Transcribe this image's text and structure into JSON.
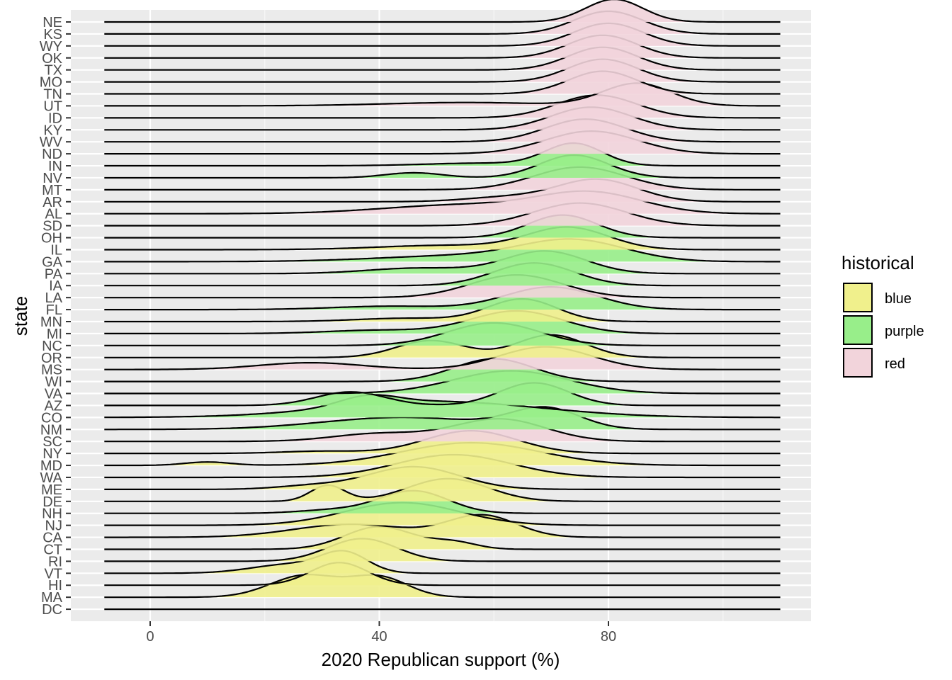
{
  "chart_data": {
    "type": "ridgeline",
    "xlabel": "2020 Republican support (%)",
    "ylabel": "state",
    "x_ticks": [
      0,
      40,
      80
    ],
    "x_tick_labels": [
      "0",
      "40",
      "80"
    ],
    "xlim": [
      -14,
      115
    ],
    "grid": true,
    "legend": {
      "title": "historical",
      "position": "right",
      "entries": [
        {
          "label": "blue",
          "color": "#F0F08C"
        },
        {
          "label": "purple",
          "color": "#98EE8A"
        },
        {
          "label": "red",
          "color": "#F2D4DB"
        }
      ]
    },
    "colors": {
      "blue": "#F0F08C",
      "purple": "#98EE8A",
      "red": "#F2D4DB"
    },
    "states": [
      {
        "state": "NE",
        "group": "red",
        "modes": [
          [
            81,
            5,
            1
          ]
        ]
      },
      {
        "state": "KS",
        "group": "red",
        "modes": [
          [
            80,
            6,
            1
          ]
        ]
      },
      {
        "state": "WY",
        "group": "red",
        "modes": [
          [
            80,
            6,
            1
          ]
        ]
      },
      {
        "state": "OK",
        "group": "red",
        "modes": [
          [
            79,
            6,
            1
          ]
        ]
      },
      {
        "state": "TX",
        "group": "red",
        "modes": [
          [
            79,
            6,
            1
          ]
        ]
      },
      {
        "state": "MO",
        "group": "red",
        "modes": [
          [
            79,
            6,
            1
          ]
        ]
      },
      {
        "state": "TN",
        "group": "red",
        "modes": [
          [
            79,
            6,
            1
          ]
        ]
      },
      {
        "state": "UT",
        "group": "red",
        "modes": [
          [
            85,
            6,
            1
          ],
          [
            55,
            14,
            0.15
          ]
        ]
      },
      {
        "state": "ID",
        "group": "red",
        "modes": [
          [
            78,
            7,
            1
          ]
        ]
      },
      {
        "state": "KY",
        "group": "red",
        "modes": [
          [
            77,
            7,
            1
          ]
        ]
      },
      {
        "state": "WV",
        "group": "red",
        "modes": [
          [
            76,
            7,
            1
          ]
        ]
      },
      {
        "state": "ND",
        "group": "red",
        "modes": [
          [
            77,
            8,
            1
          ]
        ]
      },
      {
        "state": "IN",
        "group": "purple",
        "modes": [
          [
            74,
            5,
            1
          ],
          [
            58,
            10,
            0.12
          ]
        ]
      },
      {
        "state": "NV",
        "group": "purple",
        "modes": [
          [
            74,
            6,
            1
          ],
          [
            46,
            5,
            0.22
          ]
        ]
      },
      {
        "state": "MT",
        "group": "red",
        "modes": [
          [
            75,
            8,
            1
          ]
        ]
      },
      {
        "state": "AR",
        "group": "red",
        "modes": [
          [
            78,
            7,
            1
          ],
          [
            62,
            7,
            0.2
          ]
        ]
      },
      {
        "state": "AL",
        "group": "red",
        "modes": [
          [
            77,
            9,
            1
          ],
          [
            55,
            14,
            0.45
          ]
        ]
      },
      {
        "state": "SD",
        "group": "red",
        "modes": [
          [
            75,
            8,
            1
          ]
        ]
      },
      {
        "state": "OH",
        "group": "purple",
        "modes": [
          [
            72,
            6,
            1
          ]
        ]
      },
      {
        "state": "IL",
        "group": "blue",
        "modes": [
          [
            73,
            7,
            1
          ],
          [
            52,
            12,
            0.2
          ]
        ]
      },
      {
        "state": "GA",
        "group": "purple",
        "modes": [
          [
            74,
            9,
            1
          ],
          [
            55,
            15,
            0.3
          ]
        ]
      },
      {
        "state": "PA",
        "group": "purple",
        "modes": [
          [
            69,
            7,
            1
          ],
          [
            47,
            9,
            0.25
          ]
        ]
      },
      {
        "state": "IA",
        "group": "purple",
        "modes": [
          [
            67,
            7,
            1
          ]
        ]
      },
      {
        "state": "LA",
        "group": "red",
        "modes": [
          [
            64,
            8,
            1
          ]
        ]
      },
      {
        "state": "FL",
        "group": "purple",
        "modes": [
          [
            70,
            8,
            1
          ],
          [
            42,
            10,
            0.15
          ]
        ]
      },
      {
        "state": "MN",
        "group": "blue",
        "modes": [
          [
            65,
            6,
            1
          ],
          [
            45,
            9,
            0.15
          ]
        ]
      },
      {
        "state": "MI",
        "group": "purple",
        "modes": [
          [
            64,
            8,
            1
          ],
          [
            40,
            9,
            0.15
          ]
        ]
      },
      {
        "state": "NC",
        "group": "purple",
        "modes": [
          [
            60,
            8,
            1
          ]
        ]
      },
      {
        "state": "OR",
        "group": "blue",
        "modes": [
          [
            70,
            6,
            1
          ],
          [
            49,
            6,
            0.75
          ]
        ]
      },
      {
        "state": "MS",
        "group": "red",
        "modes": [
          [
            69,
            8,
            1
          ],
          [
            28,
            9,
            0.3
          ]
        ]
      },
      {
        "state": "WI",
        "group": "purple",
        "modes": [
          [
            60,
            7,
            1
          ]
        ]
      },
      {
        "state": "VA",
        "group": "purple",
        "modes": [
          [
            63,
            10,
            1
          ]
        ]
      },
      {
        "state": "AZ",
        "group": "purple",
        "modes": [
          [
            67,
            6,
            1
          ],
          [
            35,
            6,
            0.6
          ]
        ]
      },
      {
        "state": "CO",
        "group": "purple",
        "modes": [
          [
            50,
            18,
            1
          ],
          [
            38,
            5,
            0.6
          ]
        ]
      },
      {
        "state": "NM",
        "group": "purple",
        "modes": [
          [
            69,
            6,
            1
          ],
          [
            44,
            14,
            0.6
          ]
        ]
      },
      {
        "state": "SC",
        "group": "red",
        "modes": [
          [
            61,
            8,
            1
          ],
          [
            40,
            8,
            0.35
          ]
        ]
      },
      {
        "state": "NY",
        "group": "blue",
        "modes": [
          [
            56,
            8,
            1
          ],
          [
            30,
            7,
            0.1
          ]
        ]
      },
      {
        "state": "MD",
        "group": "blue",
        "modes": [
          [
            56,
            12,
            1
          ],
          [
            10,
            4,
            0.15
          ]
        ]
      },
      {
        "state": "WA",
        "group": "blue",
        "modes": [
          [
            53,
            10,
            1
          ]
        ]
      },
      {
        "state": "ME",
        "group": "blue",
        "modes": [
          [
            46,
            8,
            1
          ],
          [
            28,
            6,
            0.15
          ]
        ]
      },
      {
        "state": "DE",
        "group": "blue",
        "modes": [
          [
            52,
            7,
            1
          ],
          [
            31,
            3,
            0.7
          ]
        ]
      },
      {
        "state": "NH",
        "group": "purple",
        "modes": [
          [
            46,
            6,
            1
          ],
          [
            32,
            6,
            0.15
          ]
        ]
      },
      {
        "state": "NJ",
        "group": "blue",
        "modes": [
          [
            44,
            10,
            1
          ]
        ]
      },
      {
        "state": "CA",
        "group": "blue",
        "modes": [
          [
            58,
            6,
            1
          ],
          [
            35,
            10,
            0.6
          ]
        ]
      },
      {
        "state": "CT",
        "group": "blue",
        "modes": [
          [
            40,
            6,
            1
          ],
          [
            53,
            4,
            0.3
          ]
        ]
      },
      {
        "state": "RI",
        "group": "blue",
        "modes": [
          [
            37,
            6,
            1
          ]
        ]
      },
      {
        "state": "VT",
        "group": "blue",
        "modes": [
          [
            34,
            4,
            1
          ],
          [
            25,
            7,
            0.5
          ]
        ]
      },
      {
        "state": "HI",
        "group": "blue",
        "modes": [
          [
            33,
            5,
            1
          ]
        ]
      },
      {
        "state": "MA",
        "group": "blue",
        "modes": [
          [
            27,
            6,
            1
          ],
          [
            40,
            5,
            0.9
          ]
        ]
      },
      {
        "state": "DC",
        "group": "blue",
        "modes": [
          [
            6,
            3,
            0.0
          ]
        ]
      }
    ]
  }
}
